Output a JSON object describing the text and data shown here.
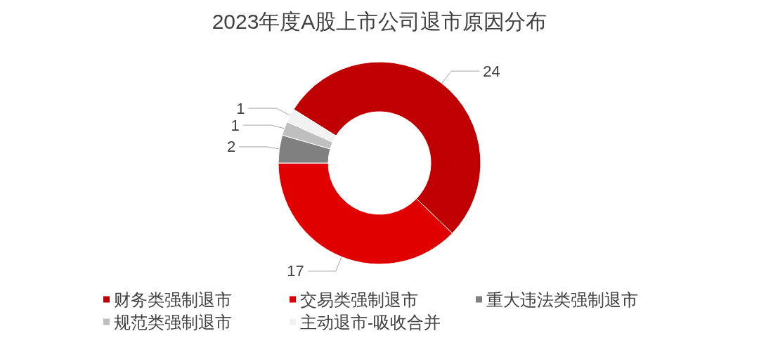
{
  "chart_data": {
    "type": "donut",
    "title": "2023年度A股上市公司退市原因分布",
    "categories": [
      "财务类强制退市",
      "交易类强制退市",
      "重大违法类强制退市",
      "规范类强制退市",
      "主动退市-吸收合并"
    ],
    "values": [
      24,
      17,
      2,
      1,
      1
    ],
    "colors": [
      "#c00000",
      "#e00000",
      "#808080",
      "#bfbfbf",
      "#f2f2f2"
    ],
    "data_labels": true,
    "legend": "bottom"
  }
}
